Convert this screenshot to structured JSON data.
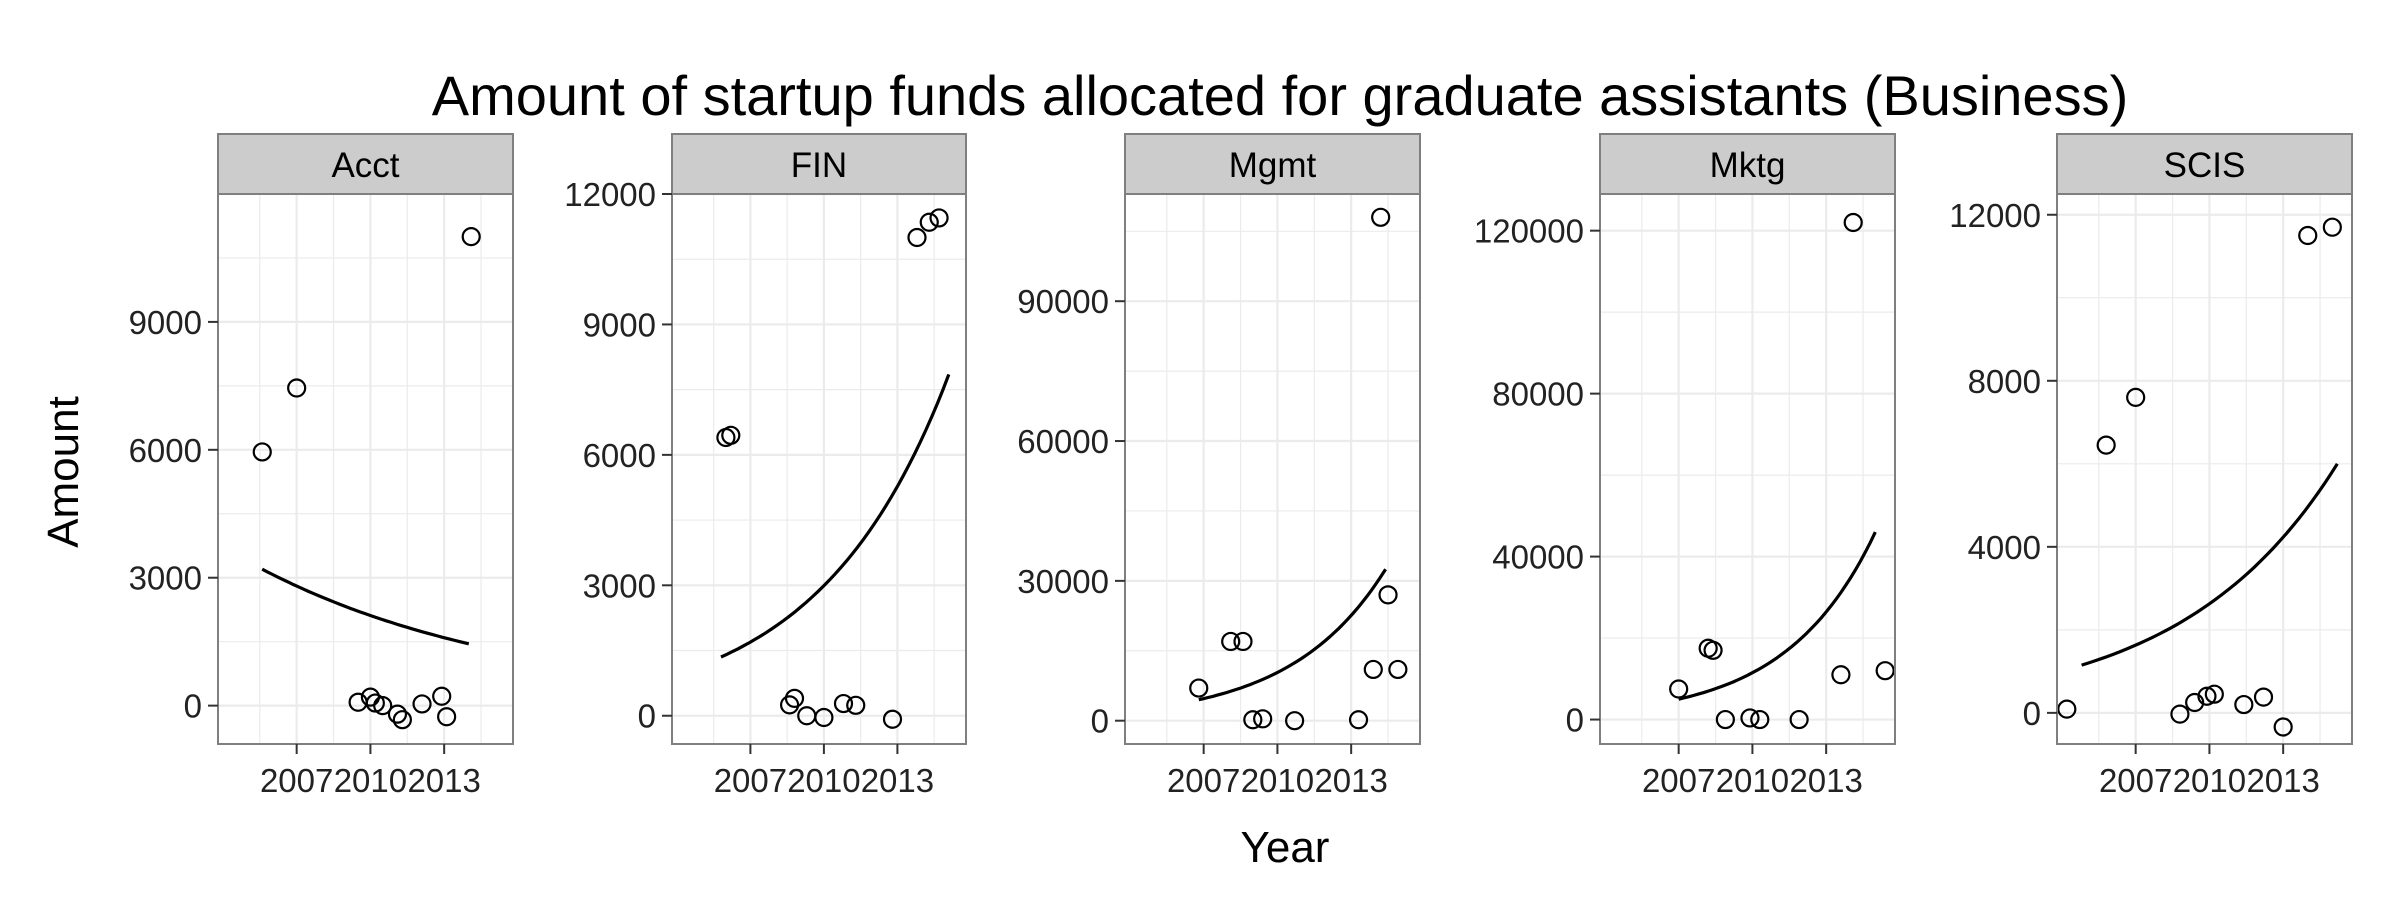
{
  "chart_data": {
    "type": "scatter",
    "title": "Amount of startup funds allocated for graduate assistants (Business)",
    "xlabel": "Year",
    "ylabel": "Amount",
    "grid": true,
    "legend": "none",
    "colors": {
      "panel_bg": "#ffffff",
      "grid": "#ebebeb",
      "strip_bg": "#cccccc",
      "border": "#7f7f7f",
      "point": "#000000",
      "line": "#000000"
    },
    "xlim": [
      2003.8,
      2015.8
    ],
    "x_ticks": [
      2007,
      2010,
      2013
    ],
    "x_tick_labels": [
      "2007",
      "2010",
      "2013"
    ],
    "panels": [
      {
        "name": "Acct",
        "ylim": [
          -900,
          12000
        ],
        "y_ticks": [
          0,
          3000,
          6000,
          9000
        ],
        "y_tick_labels": [
          "0",
          "3000",
          "6000",
          "9000"
        ],
        "points": [
          {
            "x": 2005.6,
            "y": 5950
          },
          {
            "x": 2007.0,
            "y": 7450
          },
          {
            "x": 2009.5,
            "y": 80
          },
          {
            "x": 2010.0,
            "y": 200
          },
          {
            "x": 2010.2,
            "y": 60
          },
          {
            "x": 2010.5,
            "y": 0
          },
          {
            "x": 2011.1,
            "y": -200
          },
          {
            "x": 2011.3,
            "y": -330
          },
          {
            "x": 2012.1,
            "y": 40
          },
          {
            "x": 2012.9,
            "y": 220
          },
          {
            "x": 2013.1,
            "y": -260
          },
          {
            "x": 2014.1,
            "y": 11000
          }
        ],
        "trend": {
          "x": [
            2005.6,
            2014.0
          ],
          "y": [
            3200,
            1450
          ]
        }
      },
      {
        "name": "FIN",
        "ylim": [
          -650,
          12000
        ],
        "y_ticks": [
          0,
          3000,
          6000,
          9000,
          12000
        ],
        "y_tick_labels": [
          "0",
          "3000",
          "6000",
          "9000",
          "12000"
        ],
        "points": [
          {
            "x": 2006.0,
            "y": 6400
          },
          {
            "x": 2006.2,
            "y": 6450
          },
          {
            "x": 2008.6,
            "y": 250
          },
          {
            "x": 2008.8,
            "y": 400
          },
          {
            "x": 2009.3,
            "y": 0
          },
          {
            "x": 2010.0,
            "y": -40
          },
          {
            "x": 2010.8,
            "y": 280
          },
          {
            "x": 2011.3,
            "y": 240
          },
          {
            "x": 2012.8,
            "y": -80
          },
          {
            "x": 2013.8,
            "y": 11000
          },
          {
            "x": 2014.3,
            "y": 11350
          },
          {
            "x": 2014.7,
            "y": 11450
          }
        ],
        "trend": {
          "x": [
            2005.8,
            2015.1
          ],
          "y": [
            1350,
            7850
          ]
        }
      },
      {
        "name": "Mgmt",
        "ylim": [
          -5000,
          113000
        ],
        "y_ticks": [
          0,
          30000,
          60000,
          90000
        ],
        "y_tick_labels": [
          "0",
          "30000",
          "60000",
          "90000"
        ],
        "points": [
          {
            "x": 2006.8,
            "y": 7000
          },
          {
            "x": 2008.1,
            "y": 17000
          },
          {
            "x": 2008.6,
            "y": 17000
          },
          {
            "x": 2009.0,
            "y": 200
          },
          {
            "x": 2009.4,
            "y": 400
          },
          {
            "x": 2010.7,
            "y": 0
          },
          {
            "x": 2013.3,
            "y": 200
          },
          {
            "x": 2013.9,
            "y": 11000
          },
          {
            "x": 2014.2,
            "y": 108000
          },
          {
            "x": 2014.5,
            "y": 27000
          },
          {
            "x": 2014.9,
            "y": 11000
          }
        ],
        "trend": {
          "x": [
            2006.8,
            2014.4
          ],
          "y": [
            4500,
            32500
          ]
        }
      },
      {
        "name": "Mktg",
        "ylim": [
          -6000,
          129000
        ],
        "y_ticks": [
          0,
          40000,
          80000,
          120000
        ],
        "y_tick_labels": [
          "0",
          "40000",
          "80000",
          "120000"
        ],
        "points": [
          {
            "x": 2007.0,
            "y": 7500
          },
          {
            "x": 2008.2,
            "y": 17500
          },
          {
            "x": 2008.4,
            "y": 17000
          },
          {
            "x": 2008.9,
            "y": 0
          },
          {
            "x": 2009.9,
            "y": 400
          },
          {
            "x": 2010.3,
            "y": 0
          },
          {
            "x": 2011.9,
            "y": 0
          },
          {
            "x": 2013.6,
            "y": 11000
          },
          {
            "x": 2014.1,
            "y": 122000
          },
          {
            "x": 2015.4,
            "y": 12000
          }
        ],
        "trend": {
          "x": [
            2007.0,
            2015.0
          ],
          "y": [
            5000,
            46000
          ]
        }
      },
      {
        "name": "SCIS",
        "ylim": [
          -750,
          12500
        ],
        "y_ticks": [
          0,
          4000,
          8000,
          12000
        ],
        "y_tick_labels": [
          "0",
          "4000",
          "8000",
          "12000"
        ],
        "points": [
          {
            "x": 2004.2,
            "y": 90
          },
          {
            "x": 2005.8,
            "y": 6450
          },
          {
            "x": 2007.0,
            "y": 7600
          },
          {
            "x": 2008.8,
            "y": -30
          },
          {
            "x": 2009.4,
            "y": 250
          },
          {
            "x": 2009.9,
            "y": 400
          },
          {
            "x": 2010.2,
            "y": 450
          },
          {
            "x": 2011.4,
            "y": 200
          },
          {
            "x": 2012.2,
            "y": 380
          },
          {
            "x": 2013.0,
            "y": -340
          },
          {
            "x": 2014.0,
            "y": 11500
          },
          {
            "x": 2015.0,
            "y": 11700
          }
        ],
        "trend": {
          "x": [
            2004.8,
            2015.2
          ],
          "y": [
            1150,
            6000
          ]
        }
      }
    ]
  }
}
